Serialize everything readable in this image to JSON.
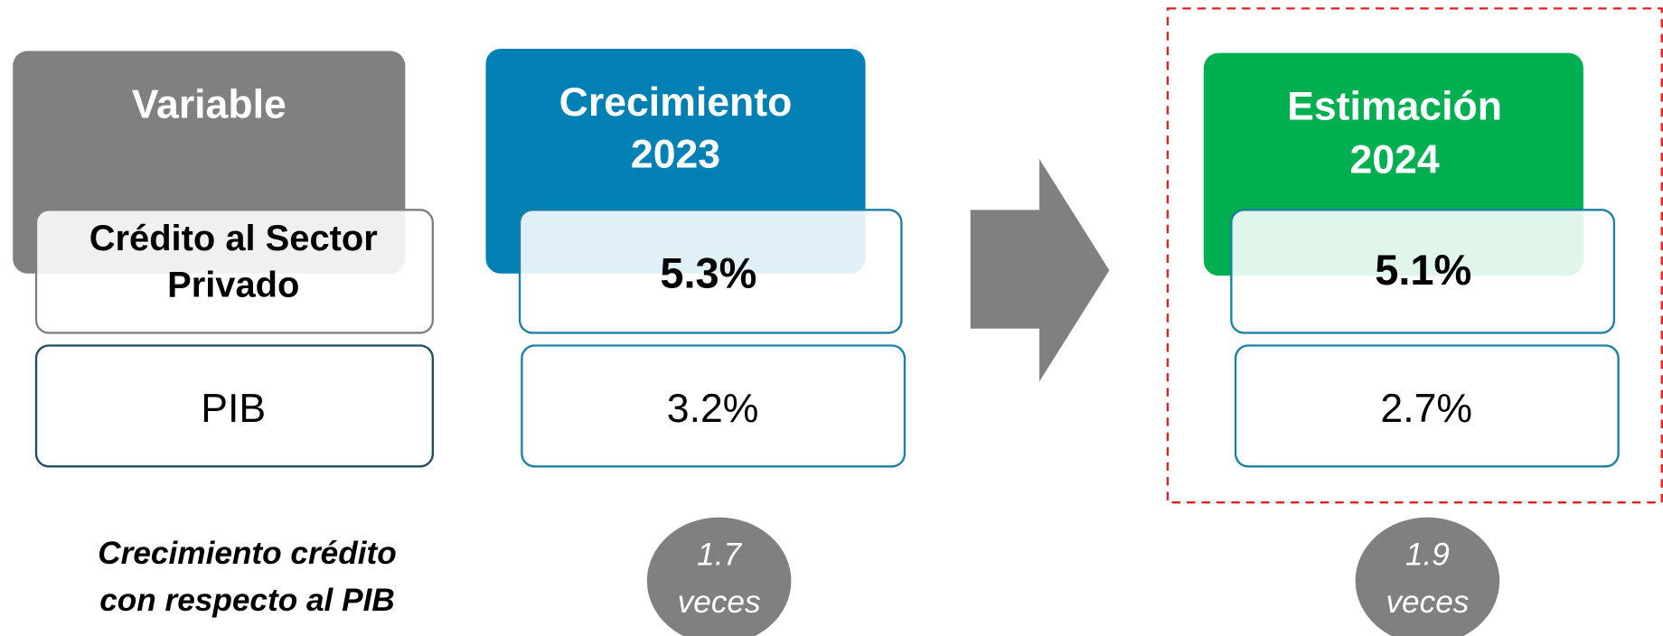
{
  "headers": [
    [
      "Variable"
    ],
    [
      "Crecimiento",
      "2023"
    ],
    [
      "Estimación",
      "2024"
    ]
  ],
  "rows": [
    {
      "label": [
        "Crédito al Sector",
        "Privado"
      ],
      "values": [
        "5.3%",
        "5.1%"
      ]
    },
    {
      "label": [
        "PIB"
      ],
      "values": [
        "3.2%",
        "2.7%"
      ]
    }
  ],
  "footer": {
    "label": [
      "Crecimiento crédito",
      "con respecto al PIB"
    ],
    "ratios": [
      [
        "1.7",
        "veces"
      ],
      [
        "1.9",
        "veces"
      ]
    ]
  }
}
